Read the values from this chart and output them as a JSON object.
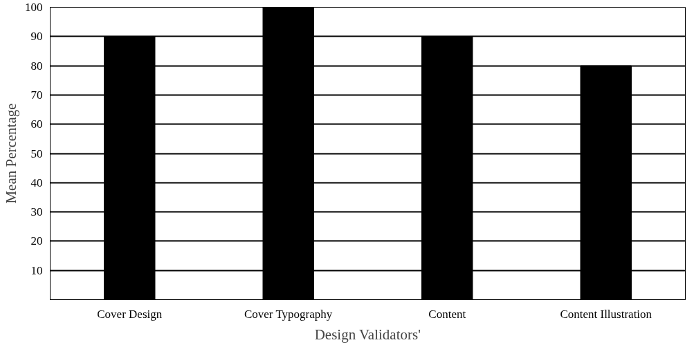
{
  "chart_data": {
    "type": "bar",
    "xlabel": "Design Validators'",
    "ylabel": "Mean Percentage",
    "categories": [
      "Cover Design",
      "Cover Typography",
      "Content",
      "Content Illustration"
    ],
    "values": [
      90,
      100,
      90,
      80
    ],
    "color": "#000000",
    "ylim": [
      0,
      100
    ],
    "yticks": [
      10,
      20,
      30,
      40,
      50,
      60,
      70,
      80,
      90,
      100
    ],
    "grid": "y"
  }
}
